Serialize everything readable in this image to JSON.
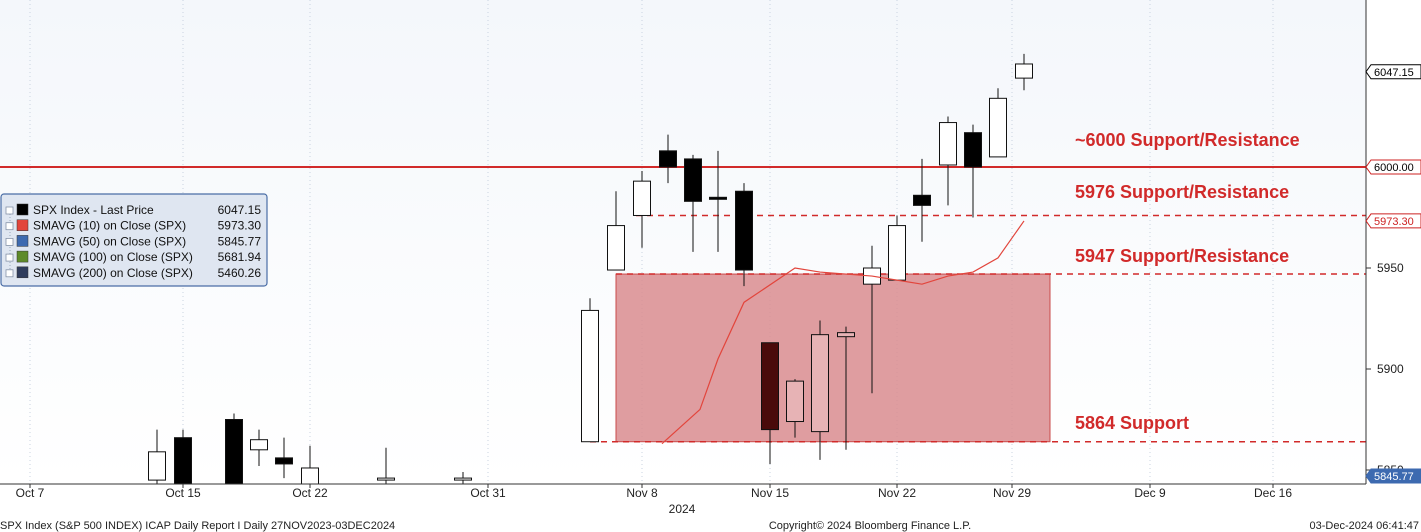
{
  "chart_data": {
    "type": "candlestick",
    "ylim": [
      5840,
      6065
    ],
    "y_ticks": [
      5850,
      5900,
      5950
    ],
    "y_tick_labels": [
      "5850",
      "5900",
      "5950"
    ],
    "x_tick_labels": [
      "Oct 7",
      "Oct 15",
      "Oct 22",
      "Oct 31",
      "Nov 8",
      "Nov 15",
      "Nov 22",
      "Nov 29",
      "Dec 9",
      "Dec 16"
    ],
    "x_year_label": "2024",
    "candles": [
      {
        "d": "Oct 14",
        "o": 5845,
        "h": 5870,
        "l": 5835,
        "c": 5859
      },
      {
        "d": "Oct 15",
        "o": 5866,
        "h": 5870,
        "l": 5830,
        "c": 5838
      },
      {
        "d": "Oct 17",
        "o": 5875,
        "h": 5878,
        "l": 5840,
        "c": 5843
      },
      {
        "d": "Oct 18",
        "o": 5860,
        "h": 5870,
        "l": 5852,
        "c": 5865
      },
      {
        "d": "Oct 21",
        "o": 5856,
        "h": 5866,
        "l": 5846,
        "c": 5853
      },
      {
        "d": "Oct 22",
        "o": 5840,
        "h": 5862,
        "l": 5836,
        "c": 5851
      },
      {
        "d": "Oct 25",
        "o": 5846,
        "h": 5861,
        "l": 5840,
        "c": 5846
      },
      {
        "d": "Oct 29",
        "o": 5846,
        "h": 5849,
        "l": 5840,
        "c": 5846
      },
      {
        "d": "Nov 5",
        "o": 5864,
        "h": 5935,
        "l": 5864,
        "c": 5929
      },
      {
        "d": "Nov 6",
        "o": 5949,
        "h": 5988,
        "l": 5949,
        "c": 5971
      },
      {
        "d": "Nov 7",
        "o": 5976,
        "h": 5998,
        "l": 5960,
        "c": 5993
      },
      {
        "d": "Nov 8",
        "o": 6008,
        "h": 6016,
        "l": 5992,
        "c": 6000
      },
      {
        "d": "Nov 11",
        "o": 6004,
        "h": 6006,
        "l": 5958,
        "c": 5983
      },
      {
        "d": "Nov 12",
        "o": 5985,
        "h": 6008,
        "l": 5958,
        "c": 5984
      },
      {
        "d": "Nov 13",
        "o": 5988,
        "h": 5992,
        "l": 5941,
        "c": 5949
      },
      {
        "d": "Nov 14",
        "o": 5913,
        "h": 5913,
        "l": 5853,
        "c": 5870
      },
      {
        "d": "Nov 15",
        "o": 5874,
        "h": 5895,
        "l": 5866,
        "c": 5894
      },
      {
        "d": "Nov 18",
        "o": 5869,
        "h": 5924,
        "l": 5855,
        "c": 5917
      },
      {
        "d": "Nov 19",
        "o": 5916,
        "h": 5921,
        "l": 5860,
        "c": 5918
      },
      {
        "d": "Nov 20",
        "o": 5942,
        "h": 5961,
        "l": 5888,
        "c": 5950
      },
      {
        "d": "Nov 21",
        "o": 5944,
        "h": 5976,
        "l": 5944,
        "c": 5971
      },
      {
        "d": "Nov 22",
        "o": 5986,
        "h": 6004,
        "l": 5963,
        "c": 5981
      },
      {
        "d": "Nov 25",
        "o": 6001,
        "h": 6025,
        "l": 5981,
        "c": 6022
      },
      {
        "d": "Nov 26",
        "o": 6017,
        "h": 6021,
        "l": 5975,
        "c": 6000
      },
      {
        "d": "Nov 27",
        "o": 6005,
        "h": 6039,
        "l": 6005,
        "c": 6034
      },
      {
        "d": "Nov 29",
        "o": 6044,
        "h": 6056,
        "l": 6038,
        "c": 6051
      }
    ],
    "sma10": [
      {
        "d": "Nov 18",
        "v": 5863
      },
      {
        "d": "Nov 15",
        "v": 5880
      },
      {
        "d": "Nov 14",
        "v": 5905
      },
      {
        "d": "Nov 13",
        "v": 5933
      },
      {
        "d": "Nov 12",
        "v": 5950
      },
      {
        "d": "Nov 11",
        "v": 5948
      },
      {
        "d": "Nov 20",
        "v": 5946
      },
      {
        "d": "Nov 21",
        "v": 5944
      },
      {
        "d": "Nov 22",
        "v": 5942
      },
      {
        "d": "Nov 25",
        "v": 5946
      },
      {
        "d": "Nov 26",
        "v": 5948
      },
      {
        "d": "Nov 27",
        "v": 5955
      },
      {
        "d": "Nov 29",
        "v": 5973.3
      }
    ],
    "zone": {
      "low": 5864,
      "high": 5947
    },
    "legend": [
      {
        "label": "SPX Index - Last Price",
        "value": "6047.15",
        "color": "#000000"
      },
      {
        "label": "SMAVG (10)  on Close (SPX)",
        "value": "5973.30",
        "color": "#e2453c"
      },
      {
        "label": "SMAVG (50)  on Close (SPX)",
        "value": "5845.77",
        "color": "#3d6ab0"
      },
      {
        "label": "SMAVG (100)  on Close (SPX)",
        "value": "5681.94",
        "color": "#5e8a2a"
      },
      {
        "label": "SMAVG (200)  on Close (SPX)",
        "value": "5460.26",
        "color": "#2f3c5c"
      }
    ],
    "levels": [
      {
        "value": 6000,
        "style": "solid",
        "label": "~6000 Support/Resistance",
        "tag": "6000.00"
      },
      {
        "value": 5976,
        "style": "dashed",
        "label": "5976 Support/Resistance",
        "tag": "5973.30"
      },
      {
        "value": 5947,
        "style": "dashed",
        "label": "5947 Support/Resistance"
      },
      {
        "value": 5864,
        "style": "dashed",
        "label": "5864 Support"
      }
    ],
    "price_tags": [
      {
        "value": 6047.15,
        "text": "6047.15",
        "style": "last"
      },
      {
        "value": 6000,
        "text": "6000.00",
        "style": "level"
      },
      {
        "value": 5973.3,
        "text": "5973.30",
        "style": "sma10"
      },
      {
        "value": 5845.77,
        "text": "5845.77",
        "style": "sma50"
      }
    ]
  },
  "footer": {
    "left": "SPX Index (S&P 500 INDEX) ICAP Daily Report I  Daily 27NOV2023-03DEC2024",
    "center": "Copyright© 2024 Bloomberg Finance L.P.",
    "right": "03-Dec-2024 06:41:47"
  },
  "colors": {
    "accent_red": "#d12a2a",
    "zone_fill": "#d98c8f",
    "bg_top": "#f4f7fb",
    "bg_bottom": "#ffffff"
  }
}
